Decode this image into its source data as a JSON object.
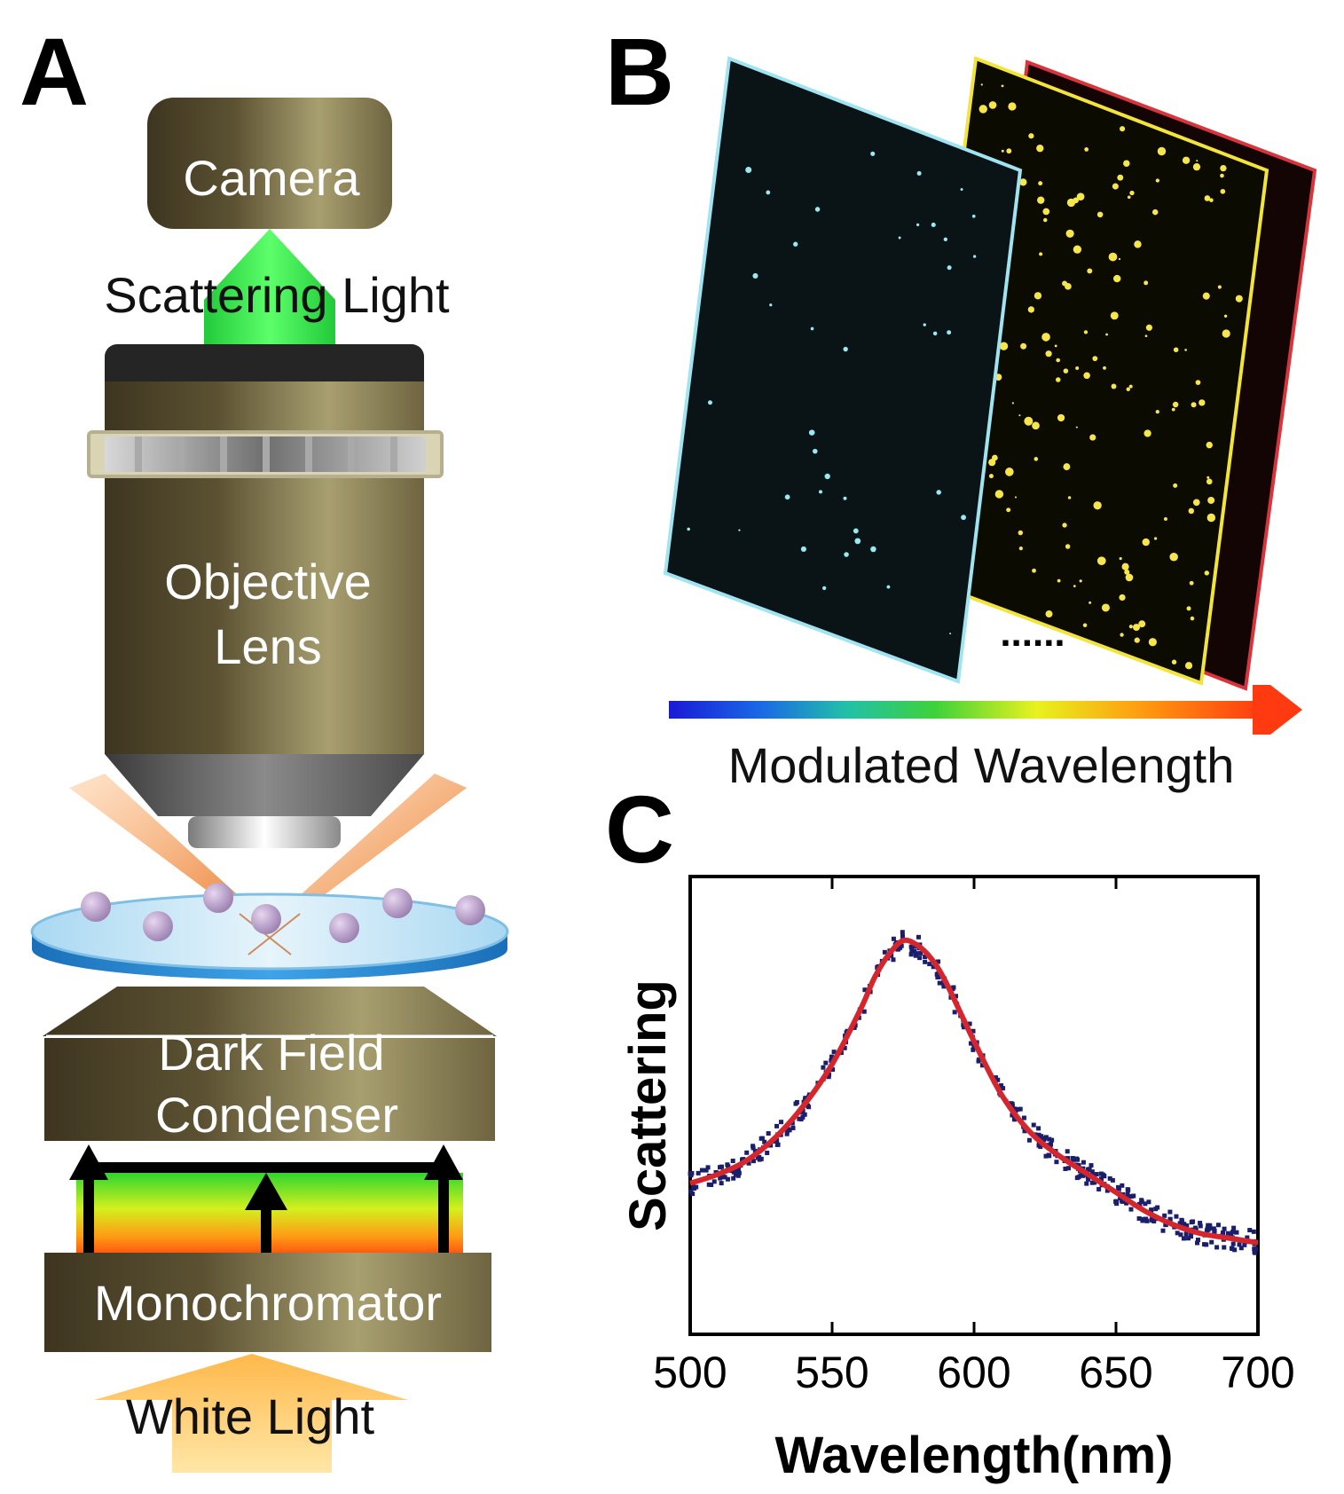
{
  "panels": {
    "a": {
      "letter": "A",
      "camera": "Camera",
      "scattering_light": "Scattering Light",
      "objective_line1": "Objective",
      "objective_line2": "Lens",
      "condenser_line1": "Dark Field",
      "condenser_line2": "Condenser",
      "monochromator": "Monochromator",
      "white_light": "White Light"
    },
    "b": {
      "letter": "B",
      "ellipsis": "......",
      "axis_label": "Modulated Wavelength",
      "frame_colors": [
        "#9fe4f0",
        "#f3e43a",
        "#d9343c"
      ]
    },
    "c": {
      "letter": "C"
    }
  },
  "colors": {
    "housing": "#4a4027",
    "housing_light": "#a39a6c",
    "beam_green": "#36e84a",
    "fit_curve": "#d6262d",
    "data_points": "#1b1f6b",
    "stage_blue": "#2f8fd6"
  },
  "chart_data": {
    "type": "scatter",
    "xlabel": "Wavelength(nm)",
    "ylabel": "Scattering",
    "xlim": [
      500,
      700
    ],
    "ylim": [
      0,
      1
    ],
    "xticks": [
      500,
      550,
      600,
      650,
      700
    ],
    "grid": false,
    "series": [
      {
        "kind": "points",
        "x": [
          500,
          510,
          520,
          530,
          540,
          550,
          560,
          565,
          570,
          575,
          580,
          585,
          590,
          600,
          610,
          620,
          630,
          640,
          650,
          660,
          670,
          680,
          690,
          700
        ],
        "y": [
          0.33,
          0.35,
          0.38,
          0.43,
          0.5,
          0.59,
          0.71,
          0.78,
          0.83,
          0.86,
          0.85,
          0.82,
          0.77,
          0.64,
          0.52,
          0.44,
          0.39,
          0.35,
          0.31,
          0.27,
          0.24,
          0.22,
          0.21,
          0.2
        ]
      },
      {
        "kind": "fit",
        "x": [
          500,
          510,
          520,
          530,
          540,
          550,
          560,
          565,
          570,
          575,
          580,
          585,
          590,
          600,
          610,
          620,
          630,
          640,
          650,
          660,
          670,
          680,
          690,
          700
        ],
        "y": [
          0.33,
          0.35,
          0.38,
          0.43,
          0.5,
          0.59,
          0.71,
          0.78,
          0.83,
          0.86,
          0.85,
          0.82,
          0.77,
          0.64,
          0.52,
          0.44,
          0.39,
          0.35,
          0.31,
          0.27,
          0.24,
          0.22,
          0.21,
          0.2
        ]
      }
    ]
  }
}
